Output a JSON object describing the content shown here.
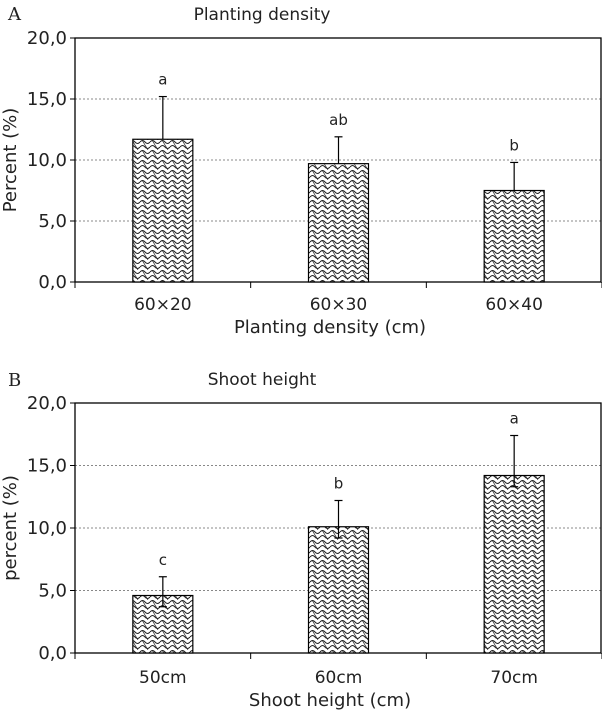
{
  "chart_data": [
    {
      "type": "bar",
      "panel": "A",
      "title": "Planting density",
      "xlabel": "Planting density (cm)",
      "ylabel": "Percent (%)",
      "ylim": [
        0,
        20
      ],
      "yticks": [
        "0,0",
        "5,0",
        "10,0",
        "15,0",
        "20,0"
      ],
      "grid": true,
      "categories": [
        "60×20",
        "60×30",
        "60×40"
      ],
      "values": [
        11.7,
        9.7,
        7.5
      ],
      "error_upper": [
        15.2,
        11.9,
        9.8
      ],
      "error_lower": [
        null,
        null,
        null
      ],
      "significance": [
        "a",
        "ab",
        "b"
      ]
    },
    {
      "type": "bar",
      "panel": "B",
      "title": "Shoot height",
      "xlabel": "Shoot height (cm)",
      "ylabel": "percent (%)",
      "ylim": [
        0,
        20
      ],
      "yticks": [
        "0,0",
        "5,0",
        "10,0",
        "15,0",
        "20,0"
      ],
      "grid": true,
      "categories": [
        "50cm",
        "60cm",
        "70cm"
      ],
      "values": [
        4.6,
        10.1,
        14.2
      ],
      "error_upper": [
        6.1,
        12.2,
        17.4
      ],
      "error_lower": [
        3.7,
        9.2,
        13.3
      ],
      "significance": [
        "c",
        "b",
        "a"
      ]
    }
  ]
}
